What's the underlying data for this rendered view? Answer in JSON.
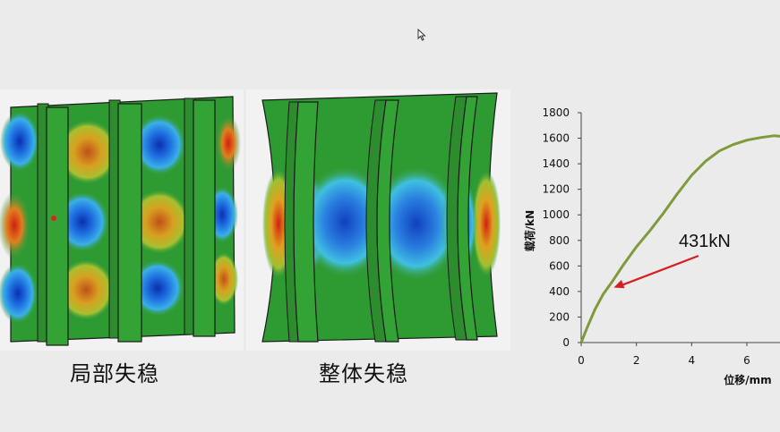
{
  "captions": {
    "left": "局部失稳",
    "right": "整体失稳"
  },
  "chart_data": {
    "type": "line",
    "ylabel": "载荷/kN",
    "xlabel": "位移/mm",
    "xlim": [
      0,
      7.2
    ],
    "ylim": [
      0,
      1800
    ],
    "xticks": [
      0,
      2,
      4,
      6
    ],
    "yticks": [
      0,
      200,
      400,
      600,
      800,
      1000,
      1200,
      1400,
      1600,
      1800
    ],
    "grid": false,
    "series": [
      {
        "color": "#7f9a3a",
        "x": [
          0,
          0.2,
          0.5,
          0.8,
          1.1,
          1.5,
          2.0,
          2.5,
          3.0,
          3.5,
          4.0,
          4.5,
          5.0,
          5.5,
          6.0,
          6.5,
          7.0,
          7.2
        ],
        "y": [
          0,
          110,
          260,
          380,
          470,
          600,
          750,
          880,
          1020,
          1170,
          1310,
          1420,
          1500,
          1550,
          1585,
          1605,
          1620,
          1615
        ]
      }
    ],
    "annotation": {
      "text": "431kN",
      "x": 1.18,
      "y": 431,
      "arrow_color": "#d42020"
    }
  }
}
